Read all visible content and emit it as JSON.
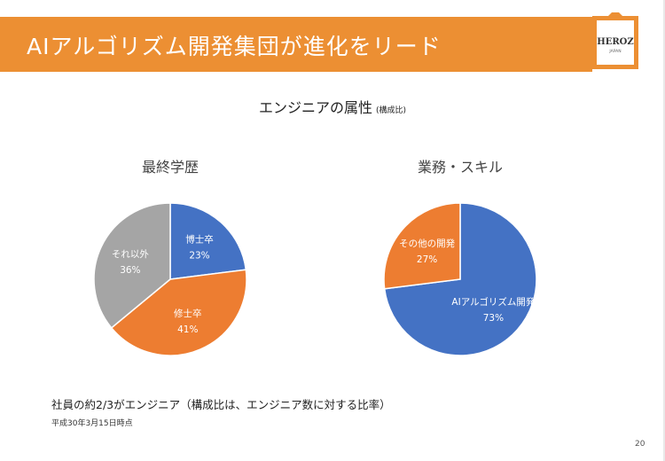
{
  "header": {
    "title": "AIアルゴリズム開発集団が進化をリード",
    "logo_text": "HEROZ",
    "logo_subtext": "JAPAN"
  },
  "subtitle": {
    "main": "エンジニアの属性",
    "note": "(構成比)"
  },
  "chart_data": [
    {
      "type": "pie",
      "title": "最終学歴",
      "categories": [
        "博士卒",
        "修士卒",
        "それ以外"
      ],
      "values": [
        23,
        41,
        36
      ],
      "labels": [
        "23%",
        "41%",
        "36%"
      ],
      "colors": [
        "#4472c4",
        "#ed7d31",
        "#a5a5a5"
      ]
    },
    {
      "type": "pie",
      "title": "業務・スキル",
      "categories": [
        "AIアルゴリズム開発",
        "その他の開発"
      ],
      "values": [
        73,
        27
      ],
      "labels": [
        "73%",
        "27%"
      ],
      "colors": [
        "#4472c4",
        "#ed7d31"
      ]
    }
  ],
  "footer": {
    "note": "社員の約2/3がエンジニア（構成比は、エンジニア数に対する比率）",
    "date": "平成30年3月15日時点",
    "page_number": "20"
  }
}
